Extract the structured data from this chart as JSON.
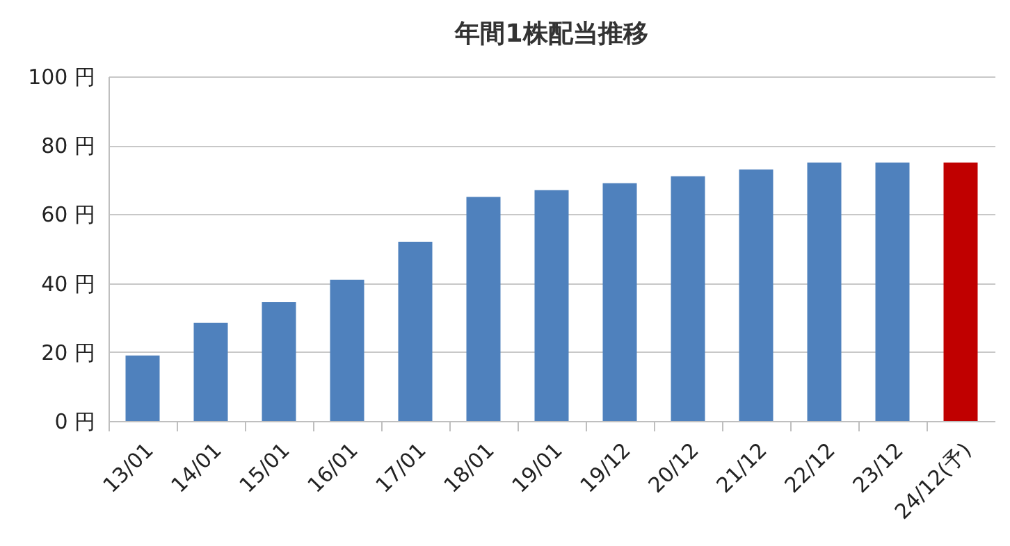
{
  "chart_data": {
    "type": "bar",
    "title": "年間1株配当推移",
    "categories": [
      "13/01",
      "14/01",
      "15/01",
      "16/01",
      "17/01",
      "18/01",
      "19/01",
      "19/12",
      "20/12",
      "21/12",
      "22/12",
      "23/12",
      "24/12(予)"
    ],
    "values": [
      19,
      28.5,
      34.5,
      41,
      52,
      65,
      67,
      69,
      71,
      73,
      75,
      75,
      75
    ],
    "colors": [
      "#4f81bd",
      "#4f81bd",
      "#4f81bd",
      "#4f81bd",
      "#4f81bd",
      "#4f81bd",
      "#4f81bd",
      "#4f81bd",
      "#4f81bd",
      "#4f81bd",
      "#4f81bd",
      "#4f81bd",
      "#c00000"
    ],
    "ylim": [
      0,
      100
    ],
    "yticks": [
      {
        "value": 0,
        "label": "0 円"
      },
      {
        "value": 20,
        "label": "20 円"
      },
      {
        "value": 40,
        "label": "40 円"
      },
      {
        "value": 60,
        "label": "60 円"
      },
      {
        "value": 80,
        "label": "80 円"
      },
      {
        "value": 100,
        "label": "100 円"
      }
    ],
    "grid": "y",
    "legend": false
  }
}
